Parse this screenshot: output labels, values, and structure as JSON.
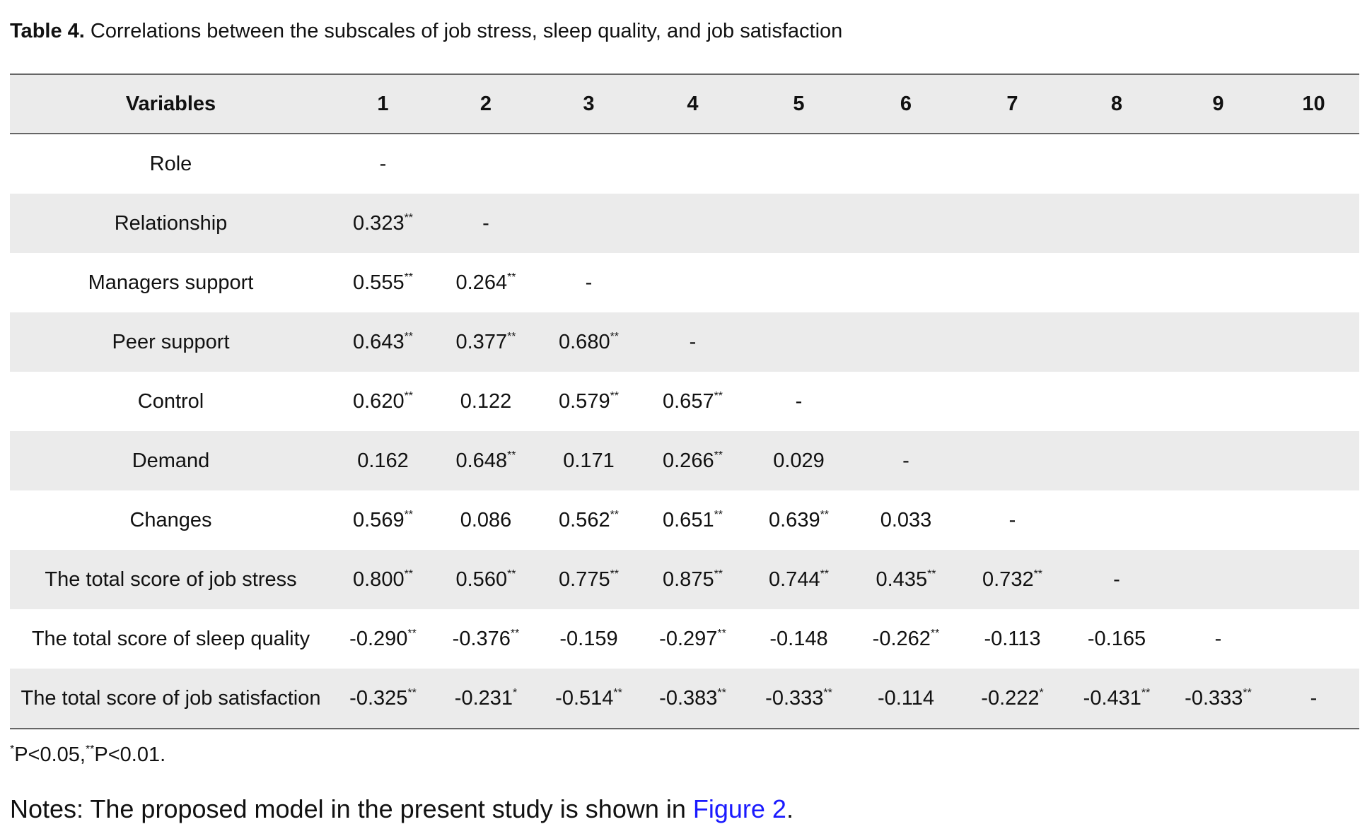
{
  "title": {
    "label": "Table 4.",
    "text": "Correlations between the subscales of job stress, sleep quality, and job satisfaction"
  },
  "table": {
    "header": [
      "Variables",
      "1",
      "2",
      "3",
      "4",
      "5",
      "6",
      "7",
      "8",
      "9",
      "10"
    ],
    "rows": [
      {
        "label": "Role",
        "cells": [
          {
            "text": "-"
          }
        ]
      },
      {
        "label": "Relationship",
        "cells": [
          {
            "text": "0.323",
            "sig": "**"
          },
          {
            "text": "-"
          }
        ]
      },
      {
        "label": "Managers support",
        "cells": [
          {
            "text": "0.555",
            "sig": "**"
          },
          {
            "text": "0.264",
            "sig": "**"
          },
          {
            "text": "-"
          }
        ]
      },
      {
        "label": "Peer support",
        "cells": [
          {
            "text": "0.643",
            "sig": "**"
          },
          {
            "text": "0.377",
            "sig": "**"
          },
          {
            "text": "0.680",
            "sig": "**"
          },
          {
            "text": "-"
          }
        ]
      },
      {
        "label": "Control",
        "cells": [
          {
            "text": "0.620",
            "sig": "**"
          },
          {
            "text": "0.122"
          },
          {
            "text": "0.579",
            "sig": "**"
          },
          {
            "text": "0.657",
            "sig": "**"
          },
          {
            "text": "-"
          }
        ]
      },
      {
        "label": "Demand",
        "cells": [
          {
            "text": "0.162"
          },
          {
            "text": "0.648",
            "sig": "**"
          },
          {
            "text": "0.171"
          },
          {
            "text": "0.266",
            "sig": "**"
          },
          {
            "text": "0.029"
          },
          {
            "text": "-"
          }
        ]
      },
      {
        "label": "Changes",
        "cells": [
          {
            "text": "0.569",
            "sig": "**"
          },
          {
            "text": "0.086"
          },
          {
            "text": "0.562",
            "sig": "**"
          },
          {
            "text": "0.651",
            "sig": "**"
          },
          {
            "text": "0.639",
            "sig": "**"
          },
          {
            "text": "0.033"
          },
          {
            "text": "-"
          }
        ]
      },
      {
        "label": "The total score of job stress",
        "cells": [
          {
            "text": "0.800",
            "sig": "**"
          },
          {
            "text": "0.560",
            "sig": "**"
          },
          {
            "text": "0.775",
            "sig": "**"
          },
          {
            "text": "0.875",
            "sig": "**"
          },
          {
            "text": "0.744",
            "sig": "**"
          },
          {
            "text": "0.435",
            "sig": "**"
          },
          {
            "text": "0.732",
            "sig": "**"
          },
          {
            "text": "-"
          }
        ]
      },
      {
        "label": "The total score of sleep quality",
        "cells": [
          {
            "text": "-0.290",
            "sig": "**"
          },
          {
            "text": "-0.376",
            "sig": "**"
          },
          {
            "text": "-0.159"
          },
          {
            "text": "-0.297",
            "sig": "**"
          },
          {
            "text": "-0.148"
          },
          {
            "text": "-0.262",
            "sig": "**"
          },
          {
            "text": "-0.113"
          },
          {
            "text": "-0.165"
          },
          {
            "text": "-"
          }
        ]
      },
      {
        "label": "The total score of job satisfaction",
        "cells": [
          {
            "text": "-0.325",
            "sig": "**"
          },
          {
            "text": "-0.231",
            "sig": "*"
          },
          {
            "text": "-0.514",
            "sig": "**"
          },
          {
            "text": "-0.383",
            "sig": "**"
          },
          {
            "text": "-0.333",
            "sig": "**"
          },
          {
            "text": "-0.114"
          },
          {
            "text": "-0.222",
            "sig": "*"
          },
          {
            "text": "-0.431",
            "sig": "**"
          },
          {
            "text": "-0.333",
            "sig": "**"
          },
          {
            "text": "-"
          }
        ]
      }
    ]
  },
  "footnote": [
    {
      "sup": "*"
    },
    {
      "text": "P<0.05,"
    },
    {
      "sup": "**"
    },
    {
      "text": "P<0.01."
    }
  ],
  "notes": {
    "text": "Notes: The proposed model in the present study is shown in",
    "link": "Figure 2",
    "end": "."
  }
}
